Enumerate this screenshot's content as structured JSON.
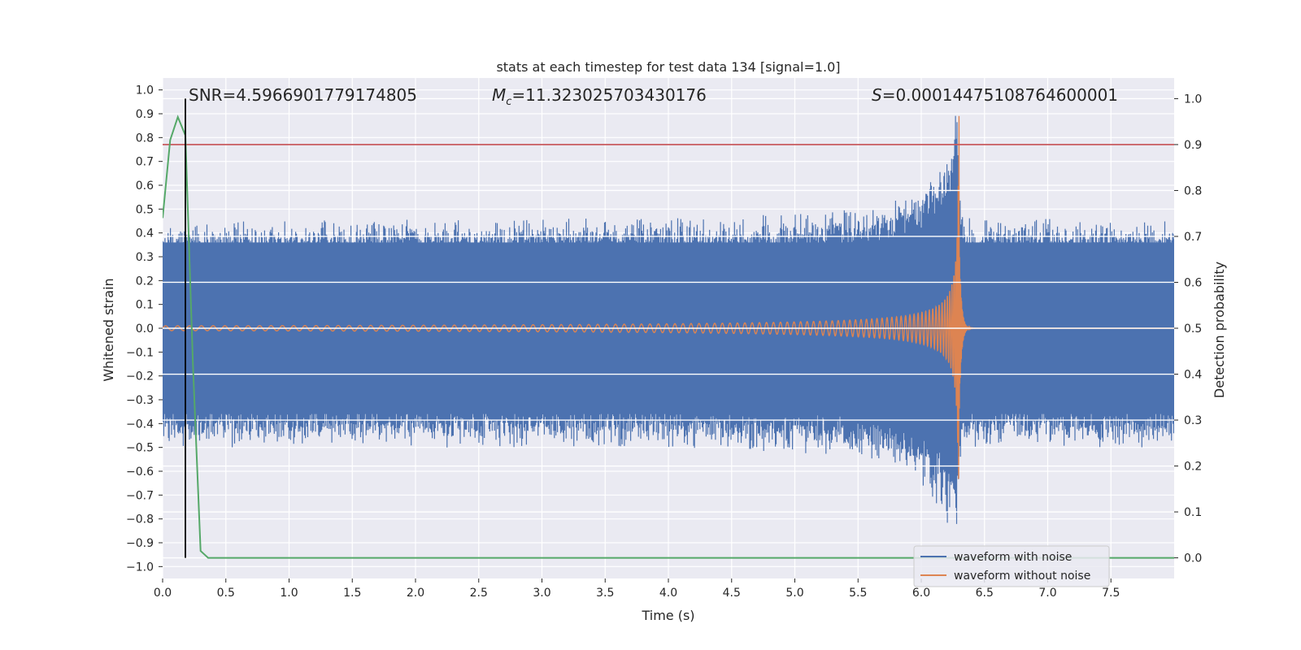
{
  "chart_data": {
    "type": "line",
    "title": "stats at each timestep for test data 134 [signal=1.0]",
    "xlabel": "Time (s)",
    "ylabel": "Whitened strain",
    "y2label": "Detection probability",
    "xlim": [
      0.0,
      8.0
    ],
    "ylim": [
      -1.05,
      1.05
    ],
    "y2lim": [
      -0.045,
      1.045
    ],
    "x_ticks": [
      "0.0",
      "0.5",
      "1.0",
      "1.5",
      "2.0",
      "2.5",
      "3.0",
      "3.5",
      "4.0",
      "4.5",
      "5.0",
      "5.5",
      "6.0",
      "6.5",
      "7.0",
      "7.5"
    ],
    "y_ticks": [
      "1.0",
      "0.9",
      "0.8",
      "0.7",
      "0.6",
      "0.5",
      "0.4",
      "0.3",
      "0.2",
      "0.1",
      "0.0",
      "−0.1",
      "−0.2",
      "−0.3",
      "−0.4",
      "−0.5",
      "−0.6",
      "−0.7",
      "−0.8",
      "−0.9",
      "−1.0"
    ],
    "y2_ticks": [
      "1.0",
      "0.9",
      "0.8",
      "0.7",
      "0.6",
      "0.5",
      "0.4",
      "0.3",
      "0.2",
      "0.1",
      "0.0"
    ],
    "annotations": {
      "snr": "SNR=4.5966901779174805",
      "mc_symbol": "M",
      "mc_sub": "c",
      "mc_value": "=11.323025703430176",
      "s_symbol": "S",
      "s_value": "=0.00014475108764600001"
    },
    "threshold": {
      "y2": 0.9,
      "color": "#c44e52"
    },
    "marker_line": {
      "x": 0.18,
      "y2_range": [
        0.0,
        1.0
      ],
      "color": "#000000"
    },
    "grid": true,
    "background": "#eaeaf2",
    "legend_placement": "lower-right",
    "series": [
      {
        "name": "waveform with noise",
        "color": "#4c72b0",
        "axis": "left",
        "envelope": {
          "x": [
            0.0,
            1.0,
            2.0,
            3.0,
            4.0,
            5.0,
            5.5,
            5.8,
            6.0,
            6.1,
            6.2,
            6.25,
            6.28,
            6.3,
            6.32,
            6.4,
            7.0,
            8.0
          ],
          "upper": [
            0.45,
            0.45,
            0.46,
            0.46,
            0.46,
            0.48,
            0.5,
            0.55,
            0.6,
            0.68,
            0.78,
            0.85,
            1.0,
            0.6,
            0.48,
            0.46,
            0.46,
            0.45
          ],
          "lower": [
            -0.5,
            -0.5,
            -0.5,
            -0.5,
            -0.5,
            -0.52,
            -0.55,
            -0.6,
            -0.65,
            -0.72,
            -0.82,
            -0.92,
            -0.85,
            -0.6,
            -0.5,
            -0.5,
            -0.5,
            -0.5
          ]
        }
      },
      {
        "name": "waveform without noise",
        "color": "#dd8452",
        "axis": "left",
        "chirp": {
          "t_coalescence": 6.3,
          "f0": 10.5,
          "amplitude_start": 0.01,
          "amplitude_peak": 0.92,
          "min_peak": -0.63
        }
      },
      {
        "name": "detection probability",
        "color": "#55a868",
        "axis": "right",
        "x": [
          0.0,
          0.06,
          0.12,
          0.18,
          0.24,
          0.3,
          0.36,
          0.42,
          8.0
        ],
        "y": [
          0.74,
          0.91,
          0.96,
          0.92,
          0.42,
          0.015,
          0.0,
          0.0,
          0.0
        ]
      }
    ]
  }
}
